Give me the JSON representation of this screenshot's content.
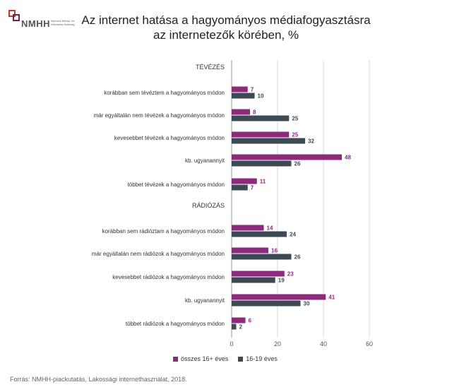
{
  "logo": {
    "text": "NMHH",
    "subtitle": "Nemzeti Média- és Hírközlési Hatóság",
    "colors": [
      "#c0392b",
      "#7a1d4f",
      "#555555"
    ]
  },
  "title_line1": "Az internet hatása a hagyományos médiafogyasztásra",
  "title_line2": "az internetezők körében, %",
  "source": "Forrás: NMHH-piackutatás, Lakossági internethasználat, 2018.",
  "colors": {
    "series1": "#8e2a7e",
    "series2": "#3d4a54",
    "grid": "#d9d9d9",
    "axis": "#999999"
  },
  "chart_data": {
    "type": "bar",
    "orientation": "horizontal",
    "title": "Az internet hatása a hagyományos médiafogyasztásra az internetezők körében, %",
    "xlim": [
      0,
      60
    ],
    "xticks": [
      "0",
      "20",
      "40",
      "60"
    ],
    "grid": true,
    "legend_position": "bottom",
    "groups": [
      {
        "name": "TÉVÉZÉS",
        "categories": [
          "korábban sem tévéztem a hagyományos módon",
          "már egyáltalán nem tévézek a hagyományos módon",
          "kevesebbet tévézek a hagyományos módon",
          "kb. ugyanannyit",
          "többet tévézek a hagyományos módon"
        ],
        "series1": [
          7,
          8,
          25,
          48,
          11
        ],
        "series2": [
          10,
          25,
          32,
          26,
          7
        ]
      },
      {
        "name": "RÁDIÓZÁS",
        "categories": [
          "korábban sem rádióztam a hagyományos módon",
          "már egyáltalán nem rádiózok a hagyományos módon",
          "kevesebbet rádiózok a hagyományos módon",
          "kb. ugyanannyit",
          "többet rádiózok a hagyományos módon"
        ],
        "series1": [
          14,
          16,
          23,
          41,
          6
        ],
        "series2": [
          24,
          26,
          19,
          30,
          2
        ]
      }
    ],
    "series": [
      {
        "name": "összes 16+ éves"
      },
      {
        "name": "16-19 éves"
      }
    ]
  }
}
